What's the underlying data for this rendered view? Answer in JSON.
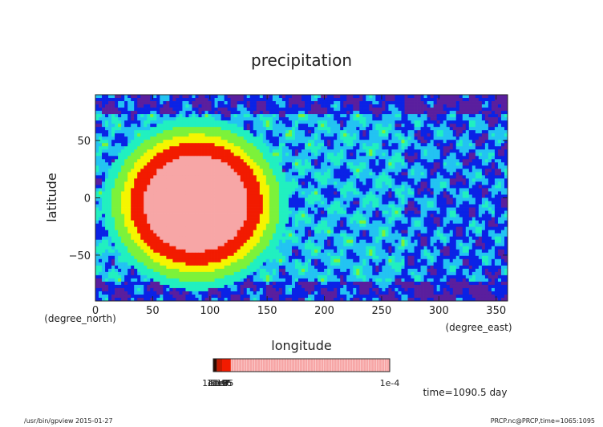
{
  "chart_data": {
    "type": "heatmap",
    "title": "precipitation",
    "xlabel": "longitude",
    "ylabel": "latitude",
    "xunit": "(degree_east)",
    "yunit": "(degree_north)",
    "xlim": [
      0,
      360
    ],
    "ylim": [
      -90,
      90
    ],
    "x_ticks": [
      0,
      50,
      100,
      150,
      200,
      250,
      300,
      350
    ],
    "y_ticks": [
      -50,
      0,
      50
    ],
    "x_tick_labels": [
      "0",
      "50",
      "100",
      "150",
      "200",
      "250",
      "300",
      "350"
    ],
    "y_tick_labels": [
      "−50",
      "0",
      "50"
    ],
    "grid": false,
    "field": {
      "anomaly_center": [
        88,
        -5
      ],
      "anomaly_radius": [
        67,
        62
      ],
      "anomaly_peak_level": 8,
      "background_level": 2
    },
    "levels": [
      0,
      1,
      2,
      3,
      4,
      5,
      6,
      7,
      8
    ],
    "level_colors": [
      "#5a1e9e",
      "#0a22e6",
      "#23c3f2",
      "#21f0c0",
      "#7cf23a",
      "#f5f500",
      "#f21b00",
      "#f21b00",
      "#f7a6a6"
    ],
    "colorbar": {
      "max_label": "1e-4",
      "min_label": "1e-10",
      "stacked_labels": [
        "1e-10",
        "1e-9",
        "1e-8",
        "1e-7",
        "1e-6",
        "1e-5"
      ],
      "segments": [
        {
          "from": 0.0,
          "to": 0.02,
          "color": "#2b0a00"
        },
        {
          "from": 0.02,
          "to": 0.05,
          "color": "#c41a00"
        },
        {
          "from": 0.05,
          "to": 0.1,
          "color": "#f21b00"
        },
        {
          "from": 0.1,
          "to": 1.0,
          "color": "#f7a6a6"
        }
      ]
    },
    "annotations": {
      "time": "time=1090.5 day",
      "footer_left": "/usr/bin/gpview  2015-01-27",
      "footer_right": "PRCP.nc@PRCP,time=1065:1095"
    }
  }
}
